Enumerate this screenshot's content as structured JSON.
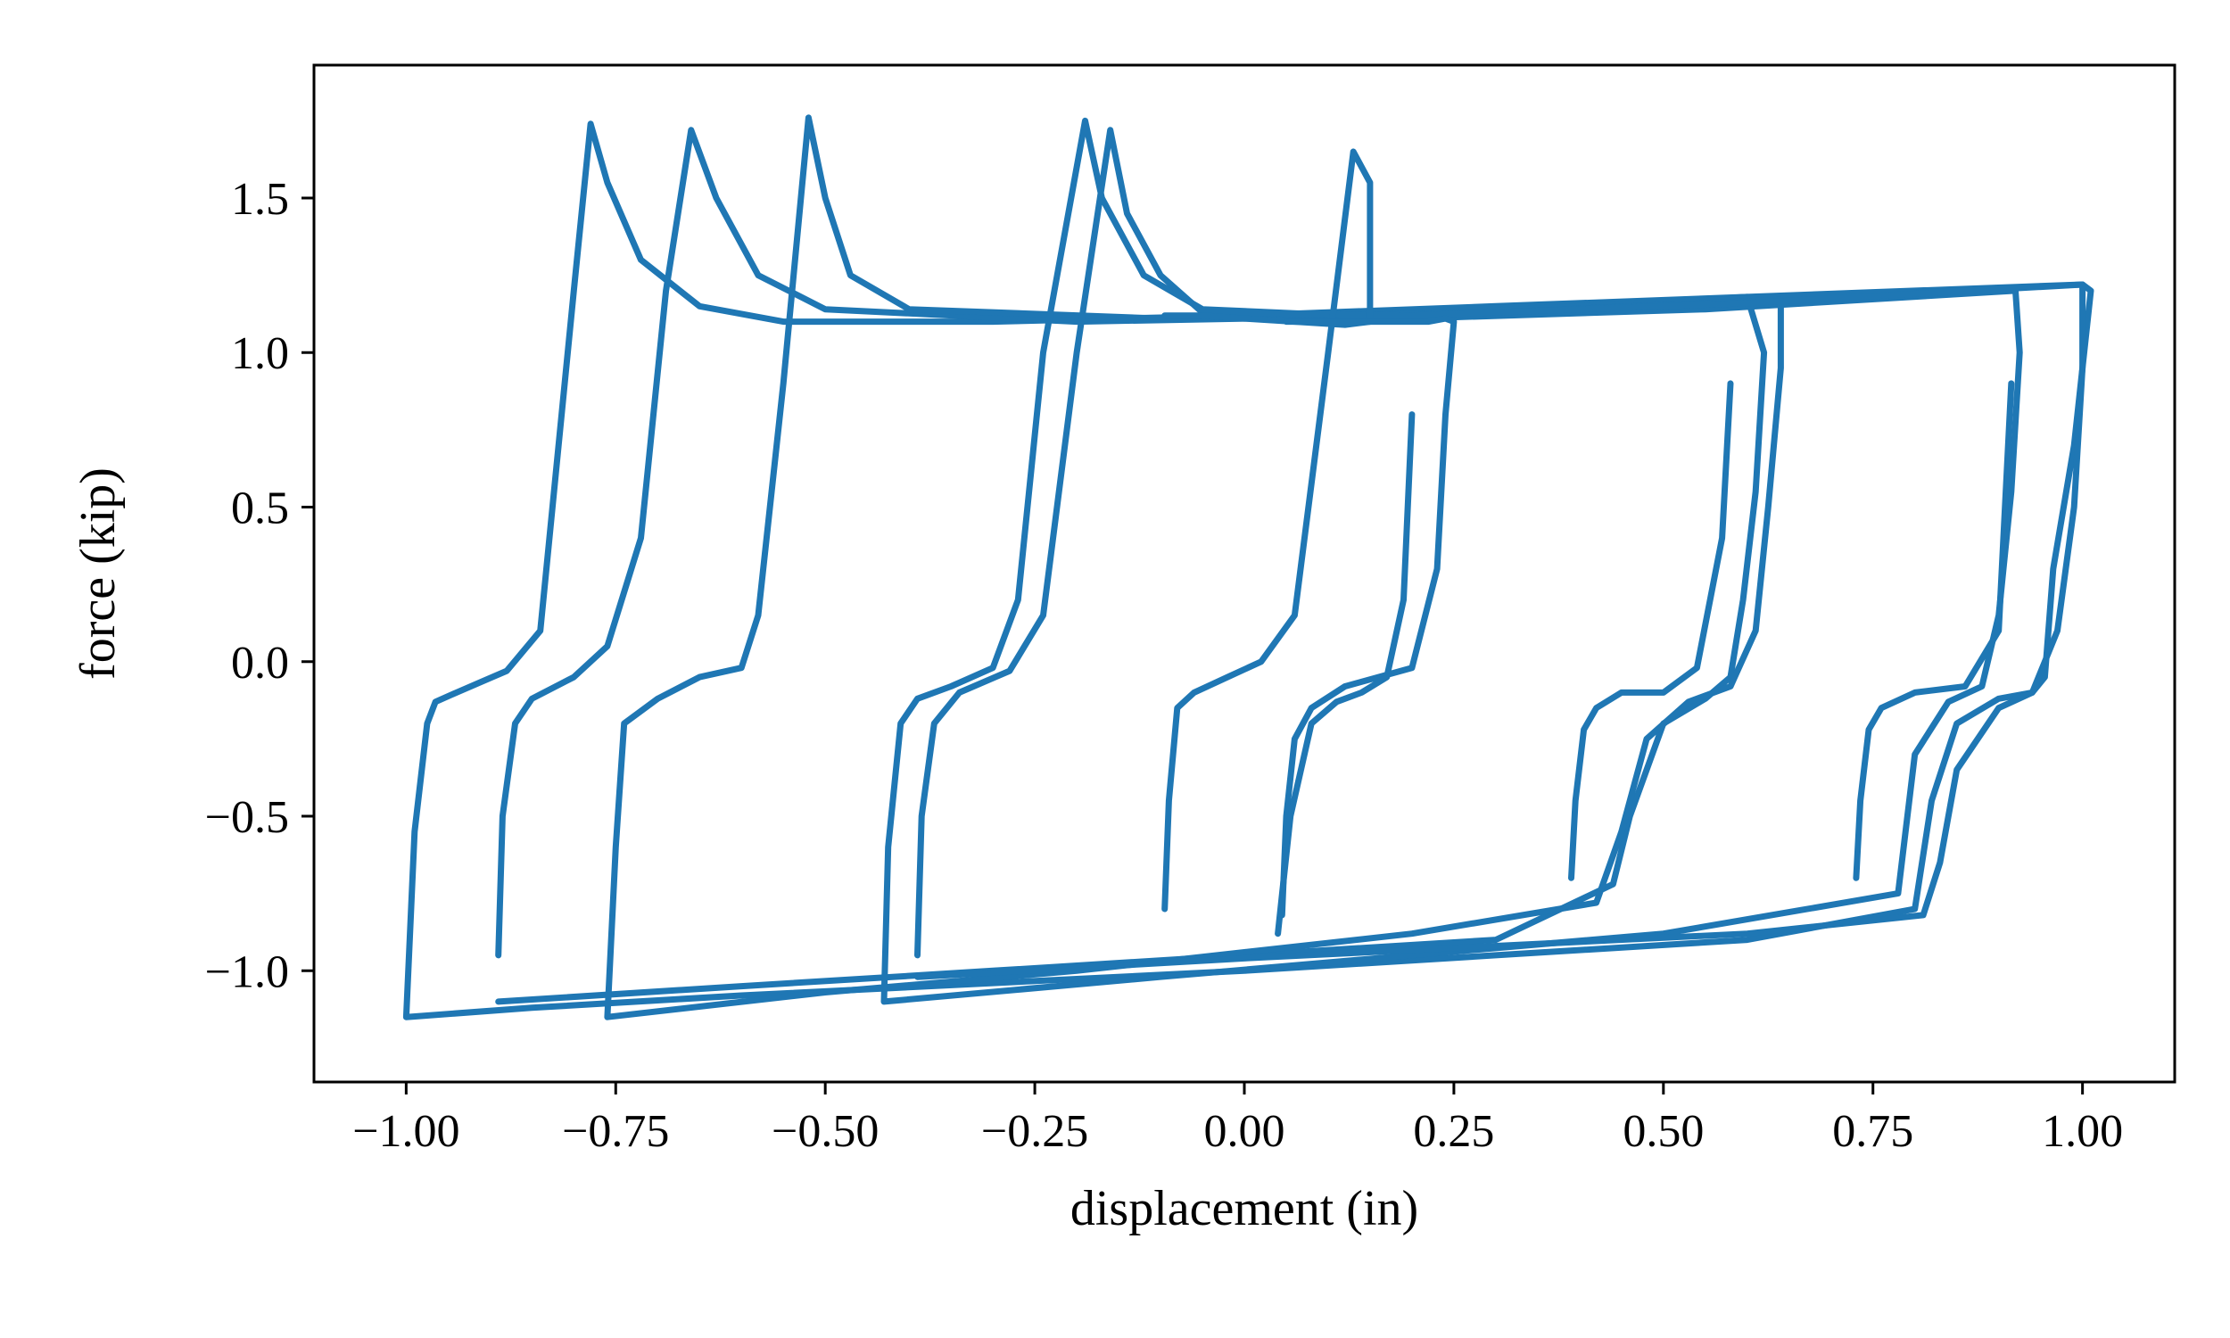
{
  "chart_data": {
    "type": "line",
    "title": "",
    "xlabel": "displacement (in)",
    "ylabel": "force (kip)",
    "xlim": [
      -1.11,
      1.11
    ],
    "ylim": [
      -1.36,
      1.93
    ],
    "xticks": [
      -1.0,
      -0.75,
      -0.5,
      -0.25,
      0.0,
      0.25,
      0.5,
      0.75,
      1.0
    ],
    "xtick_labels": [
      "−1.00",
      "−0.75",
      "−0.50",
      "−0.25",
      "0.00",
      "0.25",
      "0.50",
      "0.75",
      "1.00"
    ],
    "yticks": [
      -1.0,
      -0.5,
      0.0,
      0.5,
      1.0,
      1.5
    ],
    "ytick_labels": [
      "−1.0",
      "−0.5",
      "0.0",
      "0.5",
      "1.0",
      "1.5"
    ],
    "grid": false,
    "legend": "none",
    "line_color": "#1f77b4",
    "series": [
      {
        "x": [
          -1.0,
          -0.99,
          -0.975,
          -0.965,
          -0.94,
          -0.88,
          -0.84,
          -0.8,
          -0.78,
          -0.76,
          -0.72,
          -0.65,
          -0.55,
          -0.3,
          0.0,
          0.3,
          0.6,
          0.8,
          1.0,
          1.01,
          0.99,
          0.965,
          0.955,
          0.94,
          0.9,
          0.85,
          0.82,
          0.8,
          0.6,
          0.3,
          0.0,
          -0.3,
          -0.6,
          -0.85,
          -1.0
        ],
        "y": [
          -1.15,
          -0.55,
          -0.2,
          -0.13,
          -0.1,
          -0.03,
          0.1,
          1.2,
          1.74,
          1.55,
          1.3,
          1.15,
          1.1,
          1.1,
          1.12,
          1.15,
          1.18,
          1.2,
          1.22,
          1.2,
          0.7,
          0.3,
          -0.05,
          -0.1,
          -0.12,
          -0.2,
          -0.45,
          -0.8,
          -0.9,
          -0.95,
          -1.0,
          -1.04,
          -1.08,
          -1.12,
          -1.15
        ]
      },
      {
        "x": [
          -0.89,
          -0.885,
          -0.87,
          -0.85,
          -0.8,
          -0.76,
          -0.72,
          -0.69,
          -0.66,
          -0.63,
          -0.58,
          -0.5,
          -0.2,
          0.2,
          0.6,
          0.62,
          0.61,
          0.595,
          0.58,
          0.55,
          0.5,
          0.46,
          0.44,
          0.3,
          0.0,
          -0.3,
          -0.6,
          -0.89
        ],
        "y": [
          -0.95,
          -0.5,
          -0.2,
          -0.12,
          -0.05,
          0.05,
          0.4,
          1.2,
          1.72,
          1.5,
          1.25,
          1.14,
          1.1,
          1.12,
          1.18,
          1.0,
          0.55,
          0.2,
          -0.05,
          -0.12,
          -0.2,
          -0.5,
          -0.72,
          -0.9,
          -0.95,
          -1.0,
          -1.05,
          -1.1
        ]
      },
      {
        "x": [
          -0.76,
          -0.75,
          -0.74,
          -0.7,
          -0.65,
          -0.6,
          -0.58,
          -0.55,
          -0.52,
          -0.5,
          -0.47,
          -0.4,
          -0.1,
          0.3,
          0.64,
          0.64,
          0.625,
          0.61,
          0.58,
          0.53,
          0.48,
          0.45,
          0.42,
          0.2,
          -0.2,
          -0.5,
          -0.76
        ],
        "y": [
          -1.15,
          -0.6,
          -0.2,
          -0.12,
          -0.05,
          -0.02,
          0.15,
          0.9,
          1.76,
          1.5,
          1.25,
          1.14,
          1.11,
          1.13,
          1.17,
          0.95,
          0.5,
          0.1,
          -0.08,
          -0.13,
          -0.25,
          -0.55,
          -0.78,
          -0.88,
          -1.0,
          -1.07,
          -1.15
        ]
      },
      {
        "x": [
          -0.43,
          -0.425,
          -0.41,
          -0.39,
          -0.35,
          -0.3,
          -0.27,
          -0.24,
          -0.19,
          -0.17,
          -0.12,
          -0.05,
          0.2,
          0.55,
          0.92,
          0.925,
          0.915,
          0.9,
          0.88,
          0.84,
          0.8,
          0.78,
          0.5,
          0.2,
          -0.1,
          -0.43
        ],
        "y": [
          -1.1,
          -0.6,
          -0.2,
          -0.12,
          -0.08,
          -0.02,
          0.2,
          1.0,
          1.75,
          1.5,
          1.25,
          1.14,
          1.11,
          1.14,
          1.2,
          1.0,
          0.55,
          0.15,
          -0.08,
          -0.13,
          -0.3,
          -0.75,
          -0.88,
          -0.95,
          -1.02,
          -1.1
        ]
      },
      {
        "x": [
          -0.39,
          -0.385,
          -0.37,
          -0.34,
          -0.28,
          -0.24,
          -0.2,
          -0.16,
          -0.14,
          -0.1,
          -0.05,
          0.2,
          0.6,
          1.0,
          1.0,
          0.99,
          0.97,
          0.94,
          0.9,
          0.85,
          0.83,
          0.81,
          0.6,
          0.3,
          0.0,
          -0.39
        ],
        "y": [
          -0.95,
          -0.5,
          -0.2,
          -0.1,
          -0.03,
          0.15,
          1.0,
          1.72,
          1.45,
          1.25,
          1.13,
          1.12,
          1.16,
          1.22,
          0.95,
          0.5,
          0.1,
          -0.1,
          -0.15,
          -0.35,
          -0.65,
          -0.82,
          -0.88,
          -0.92,
          -0.96,
          -1.02
        ]
      },
      {
        "x": [
          -0.095,
          -0.09,
          -0.08,
          -0.06,
          -0.02,
          0.02,
          0.06,
          0.1,
          0.13,
          0.15,
          0.15,
          0.12,
          0.06,
          0.0,
          -0.05,
          -0.095
        ],
        "y": [
          -0.8,
          -0.45,
          -0.15,
          -0.1,
          -0.05,
          0.0,
          0.15,
          1.0,
          1.65,
          1.55,
          1.1,
          1.09,
          1.1,
          1.11,
          1.12,
          1.12
        ]
      },
      {
        "x": [
          0.045,
          0.05,
          0.06,
          0.08,
          0.12,
          0.16,
          0.2,
          0.23,
          0.24,
          0.25,
          0.24,
          0.22,
          0.18,
          0.12,
          0.05
        ],
        "y": [
          -0.82,
          -0.5,
          -0.25,
          -0.15,
          -0.08,
          -0.05,
          -0.02,
          0.3,
          0.8,
          1.1,
          1.11,
          1.1,
          1.1,
          1.1,
          1.1
        ]
      },
      {
        "x": [
          0.04,
          0.055,
          0.08,
          0.11,
          0.14,
          0.17,
          0.19,
          0.2
        ],
        "y": [
          -0.88,
          -0.5,
          -0.2,
          -0.13,
          -0.1,
          -0.05,
          0.2,
          0.8
        ]
      },
      {
        "x": [
          0.39,
          0.395,
          0.405,
          0.42,
          0.45,
          0.5,
          0.54,
          0.57,
          0.58
        ],
        "y": [
          -0.7,
          -0.45,
          -0.22,
          -0.15,
          -0.1,
          -0.1,
          -0.02,
          0.4,
          0.9
        ]
      },
      {
        "x": [
          0.73,
          0.735,
          0.745,
          0.76,
          0.8,
          0.86,
          0.9,
          0.915
        ],
        "y": [
          -0.7,
          -0.45,
          -0.22,
          -0.15,
          -0.1,
          -0.08,
          0.1,
          0.9
        ]
      }
    ]
  }
}
